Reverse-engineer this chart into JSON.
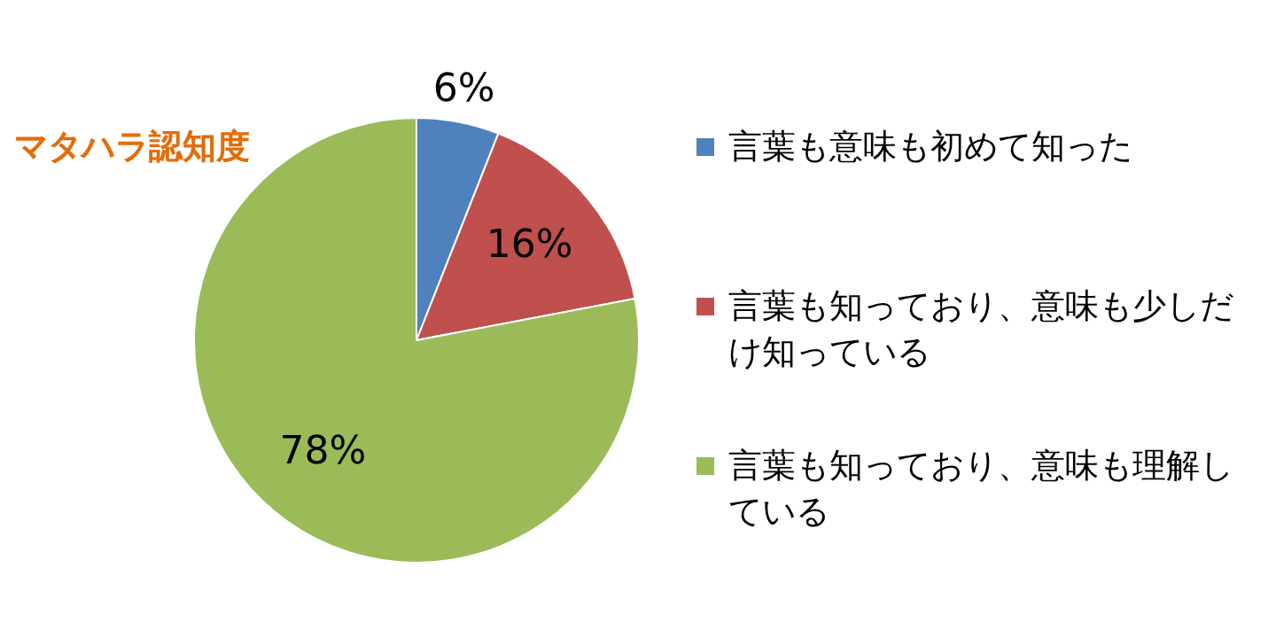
{
  "chart_data": {
    "type": "pie",
    "title": "マタハラ認知度",
    "categories": [
      "言葉も意味も初めて知った",
      "言葉も知っており、意味も少しだけ知っている",
      "言葉も知っており、意味も理解している"
    ],
    "values": [
      6,
      16,
      78
    ],
    "colors": [
      "#4f81bd",
      "#c0504d",
      "#9bbb59"
    ],
    "value_labels": [
      "6%",
      "16%",
      "78%"
    ],
    "legend": "right"
  }
}
